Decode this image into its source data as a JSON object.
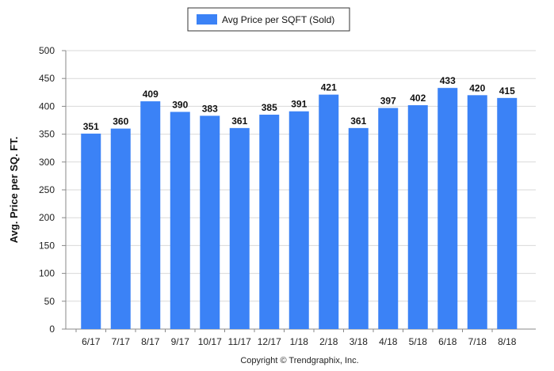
{
  "chart_data": {
    "type": "bar",
    "categories": [
      "6/17",
      "7/17",
      "8/17",
      "9/17",
      "10/17",
      "11/17",
      "12/17",
      "1/18",
      "2/18",
      "3/18",
      "4/18",
      "5/18",
      "6/18",
      "7/18",
      "8/18"
    ],
    "series": [
      {
        "name": "Avg Price per SQFT (Sold)",
        "values": [
          351,
          360,
          409,
          390,
          383,
          361,
          385,
          391,
          421,
          361,
          397,
          402,
          433,
          420,
          415
        ]
      }
    ],
    "ylabel": "Avg. Price per SQ. FT.",
    "ylim": [
      0,
      500
    ],
    "yticks": [
      0,
      50,
      100,
      150,
      200,
      250,
      300,
      350,
      400,
      450,
      500
    ],
    "grid": true,
    "legend_position": "top-center",
    "bar_color": "#3b82f6"
  },
  "footer": {
    "copyright": "Copyright © Trendgraphix, Inc."
  }
}
